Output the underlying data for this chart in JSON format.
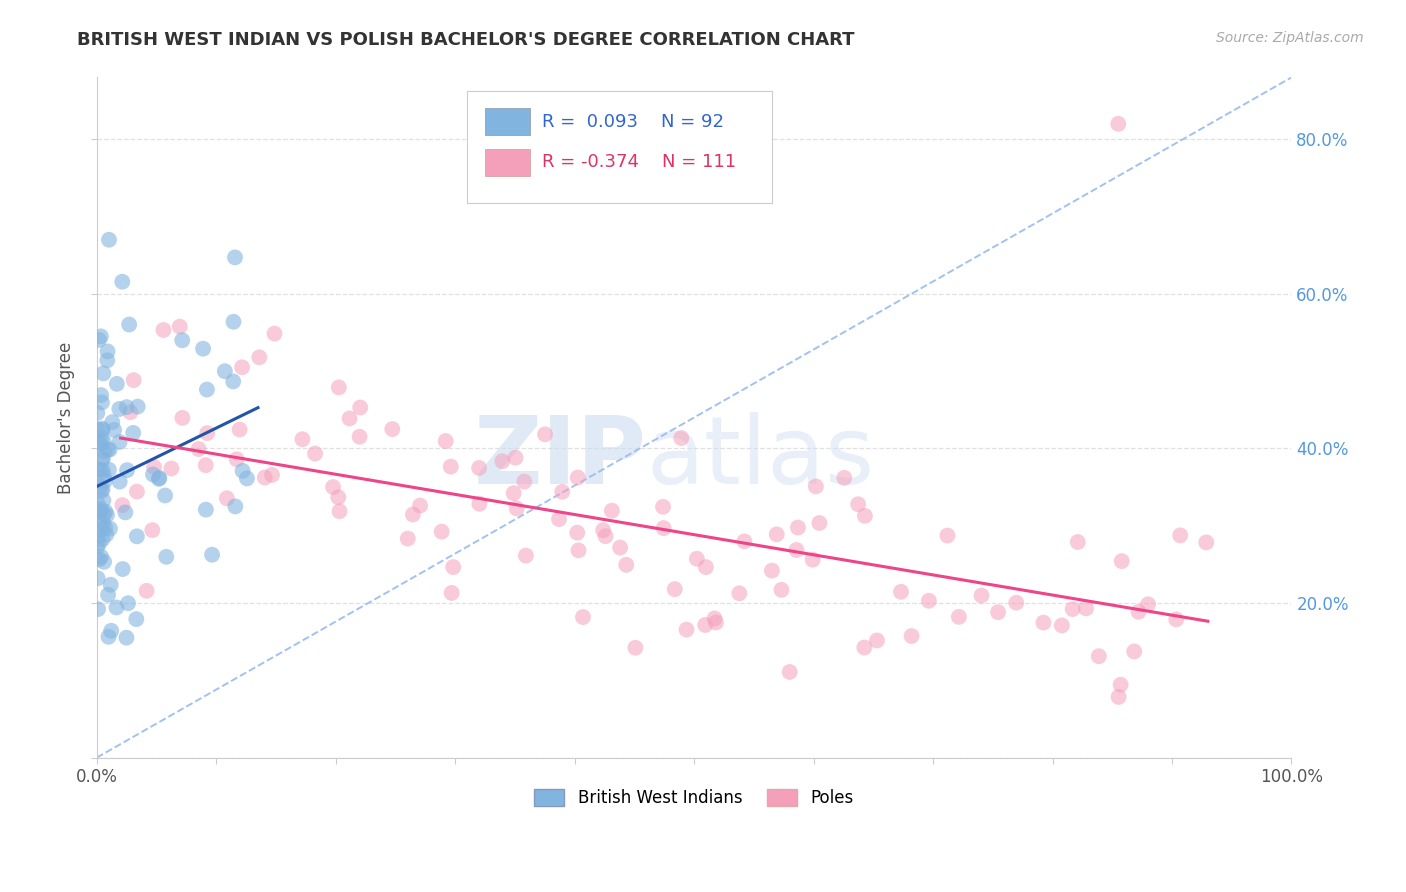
{
  "title": "BRITISH WEST INDIAN VS POLISH BACHELOR'S DEGREE CORRELATION CHART",
  "source": "Source: ZipAtlas.com",
  "ylabel": "Bachelor's Degree",
  "legend_r_blue": "R =  0.093",
  "legend_n_blue": "N = 92",
  "legend_r_pink": "R = -0.374",
  "legend_n_pink": "N = 111",
  "legend_label_blue": "British West Indians",
  "legend_label_pink": "Poles",
  "blue_color": "#82b4e0",
  "pink_color": "#f5a0ba",
  "blue_line_color": "#2255aa",
  "pink_line_color": "#ee4488",
  "diag_color": "#99bbee",
  "watermark_zip": "ZIP",
  "watermark_atlas": "atlas",
  "xlim": [
    0.0,
    1.0
  ],
  "ylim": [
    0.0,
    0.88
  ],
  "right_ytick_vals": [
    0.2,
    0.4,
    0.6,
    0.8
  ],
  "right_ytick_labels": [
    "20.0%",
    "40.0%",
    "60.0%",
    "80.0%"
  ]
}
